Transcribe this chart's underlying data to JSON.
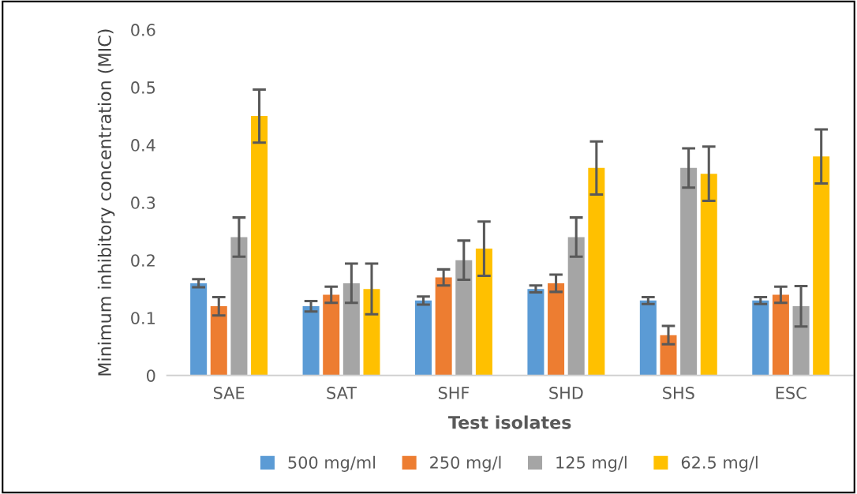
{
  "chart_data": {
    "type": "bar",
    "xlabel": "Test isolates",
    "ylabel": "Minimum inhibitory concentration (MIC)",
    "categories": [
      "SAE",
      "SAT",
      "SHF",
      "SHD",
      "SHS",
      "ESC"
    ],
    "series": [
      {
        "name": "500 mg/ml",
        "color": "#5b9bd5",
        "values": [
          0.16,
          0.12,
          0.13,
          0.15,
          0.13,
          0.13
        ],
        "errors": [
          0.007,
          0.009,
          0.007,
          0.006,
          0.006,
          0.006
        ]
      },
      {
        "name": "250 mg/l",
        "color": "#ed7d31",
        "values": [
          0.12,
          0.14,
          0.17,
          0.16,
          0.07,
          0.14
        ],
        "errors": [
          0.016,
          0.014,
          0.014,
          0.015,
          0.016,
          0.014
        ]
      },
      {
        "name": "125 mg/l",
        "color": "#a5a5a5",
        "values": [
          0.24,
          0.16,
          0.2,
          0.24,
          0.36,
          0.12
        ],
        "errors": [
          0.034,
          0.034,
          0.034,
          0.034,
          0.034,
          0.035
        ]
      },
      {
        "name": "62.5 mg/l",
        "color": "#ffc000",
        "values": [
          0.45,
          0.15,
          0.22,
          0.36,
          0.35,
          0.38
        ],
        "errors": [
          0.046,
          0.044,
          0.047,
          0.046,
          0.047,
          0.047
        ]
      }
    ],
    "ylim": [
      0,
      0.6
    ],
    "yticks": [
      0,
      0.1,
      0.2,
      0.3,
      0.4,
      0.5,
      0.6
    ],
    "grid": false,
    "legend": "bottom"
  }
}
